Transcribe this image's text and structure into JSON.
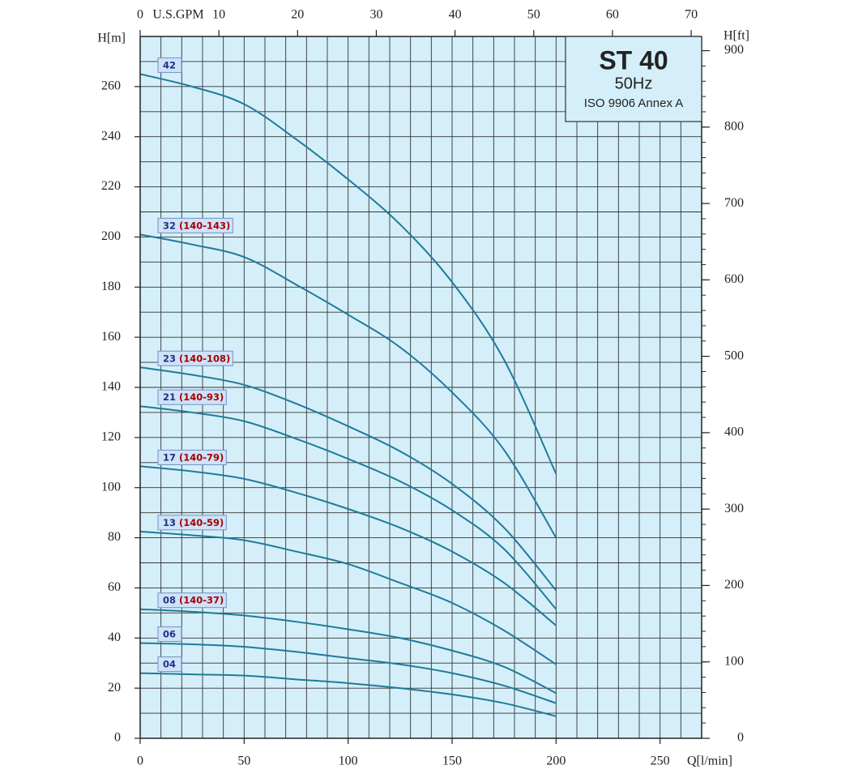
{
  "chart_data": {
    "type": "line",
    "title": "ST 40",
    "subtitle": "50Hz",
    "note": "ISO 9906 Annex A",
    "x_label": "Q[l/min]",
    "y_label": "H[m]",
    "y2_label": "H[ft]",
    "x2_label": "U.S.GPM",
    "x": [
      0,
      25,
      50,
      75,
      100,
      125,
      150,
      175,
      200
    ],
    "xlim": [
      0,
      270
    ],
    "xticks": [
      0,
      50,
      100,
      150,
      200,
      250
    ],
    "ylim": [
      0,
      280
    ],
    "yticks": [
      0,
      20,
      40,
      60,
      80,
      100,
      120,
      140,
      160,
      180,
      200,
      220,
      240,
      260
    ],
    "x2lim": [
      0,
      71.33
    ],
    "x2ticks": [
      0,
      10,
      20,
      30,
      40,
      50,
      60,
      70
    ],
    "y2lim": [
      0,
      918.6
    ],
    "y2ticks": [
      0,
      100,
      200,
      300,
      400,
      500,
      600,
      700,
      800,
      900
    ],
    "y2minor_step": 20,
    "xgrid_step": 10,
    "ygrid_step": 10,
    "grid": true,
    "color": "#1f7b99",
    "series": [
      {
        "name": "42",
        "values": [
          265,
          260,
          253,
          239,
          223,
          205,
          182,
          151,
          105.5
        ]
      },
      {
        "name": "32",
        "subname": "(140-143)",
        "values": [
          201,
          197,
          192,
          181,
          169,
          156,
          138,
          115,
          80
        ]
      },
      {
        "name": "23",
        "subname": "(140-108)",
        "values": [
          148,
          145,
          141,
          133.5,
          124.5,
          114.5,
          101.5,
          84,
          59
        ]
      },
      {
        "name": "21",
        "subname": "(140-93)",
        "values": [
          132.5,
          130,
          126.5,
          119.5,
          111.5,
          102.5,
          91,
          75.5,
          51.5
        ]
      },
      {
        "name": "17",
        "subname": "(140-79)",
        "values": [
          108.5,
          106.5,
          103.5,
          98,
          91.5,
          84,
          74.5,
          62,
          45
        ]
      },
      {
        "name": "13",
        "subname": "(140-59)",
        "values": [
          82.5,
          81,
          79,
          74.5,
          69.5,
          62,
          54,
          43,
          29.5
        ]
      },
      {
        "name": "08",
        "subname": "(140-37)",
        "values": [
          51.5,
          50.5,
          49,
          46.5,
          43.5,
          40,
          35,
          28.5,
          18
        ]
      },
      {
        "name": "06",
        "values": [
          38,
          37.5,
          36.5,
          34.5,
          32,
          29.5,
          26,
          21,
          14
        ]
      },
      {
        "name": "04",
        "values": [
          26,
          25.5,
          25,
          23.5,
          22,
          20,
          17.5,
          14,
          8.8
        ]
      }
    ]
  }
}
